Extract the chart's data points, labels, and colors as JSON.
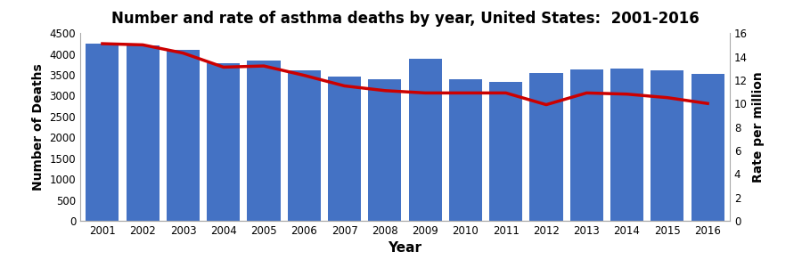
{
  "years": [
    2001,
    2002,
    2003,
    2004,
    2005,
    2006,
    2007,
    2008,
    2009,
    2010,
    2011,
    2012,
    2013,
    2014,
    2015,
    2016
  ],
  "deaths": [
    4250,
    4200,
    4100,
    3780,
    3840,
    3600,
    3450,
    3390,
    3880,
    3390,
    3340,
    3550,
    3630,
    3640,
    3600,
    3520
  ],
  "rates": [
    15.1,
    15.0,
    14.3,
    13.1,
    13.2,
    12.4,
    11.5,
    11.1,
    10.9,
    10.9,
    10.9,
    9.9,
    10.9,
    10.8,
    10.5,
    10.0
  ],
  "bar_color": "#4472C4",
  "line_color": "#CC0000",
  "title": "Number and rate of asthma deaths by year, United States:  2001-2016",
  "xlabel": "Year",
  "ylabel_left": "Number of Deaths",
  "ylabel_right": "Rate per million",
  "ylim_left": [
    0,
    4500
  ],
  "ylim_right": [
    0,
    16
  ],
  "yticks_left": [
    0,
    500,
    1000,
    1500,
    2000,
    2500,
    3000,
    3500,
    4000,
    4500
  ],
  "yticks_right": [
    0,
    2,
    4,
    6,
    8,
    10,
    12,
    14,
    16
  ],
  "title_fontsize": 12,
  "label_fontsize": 10,
  "tick_fontsize": 8.5,
  "xlabel_fontsize": 11,
  "background_color": "#FFFFFF",
  "line_width": 2.5,
  "bar_width": 0.82
}
